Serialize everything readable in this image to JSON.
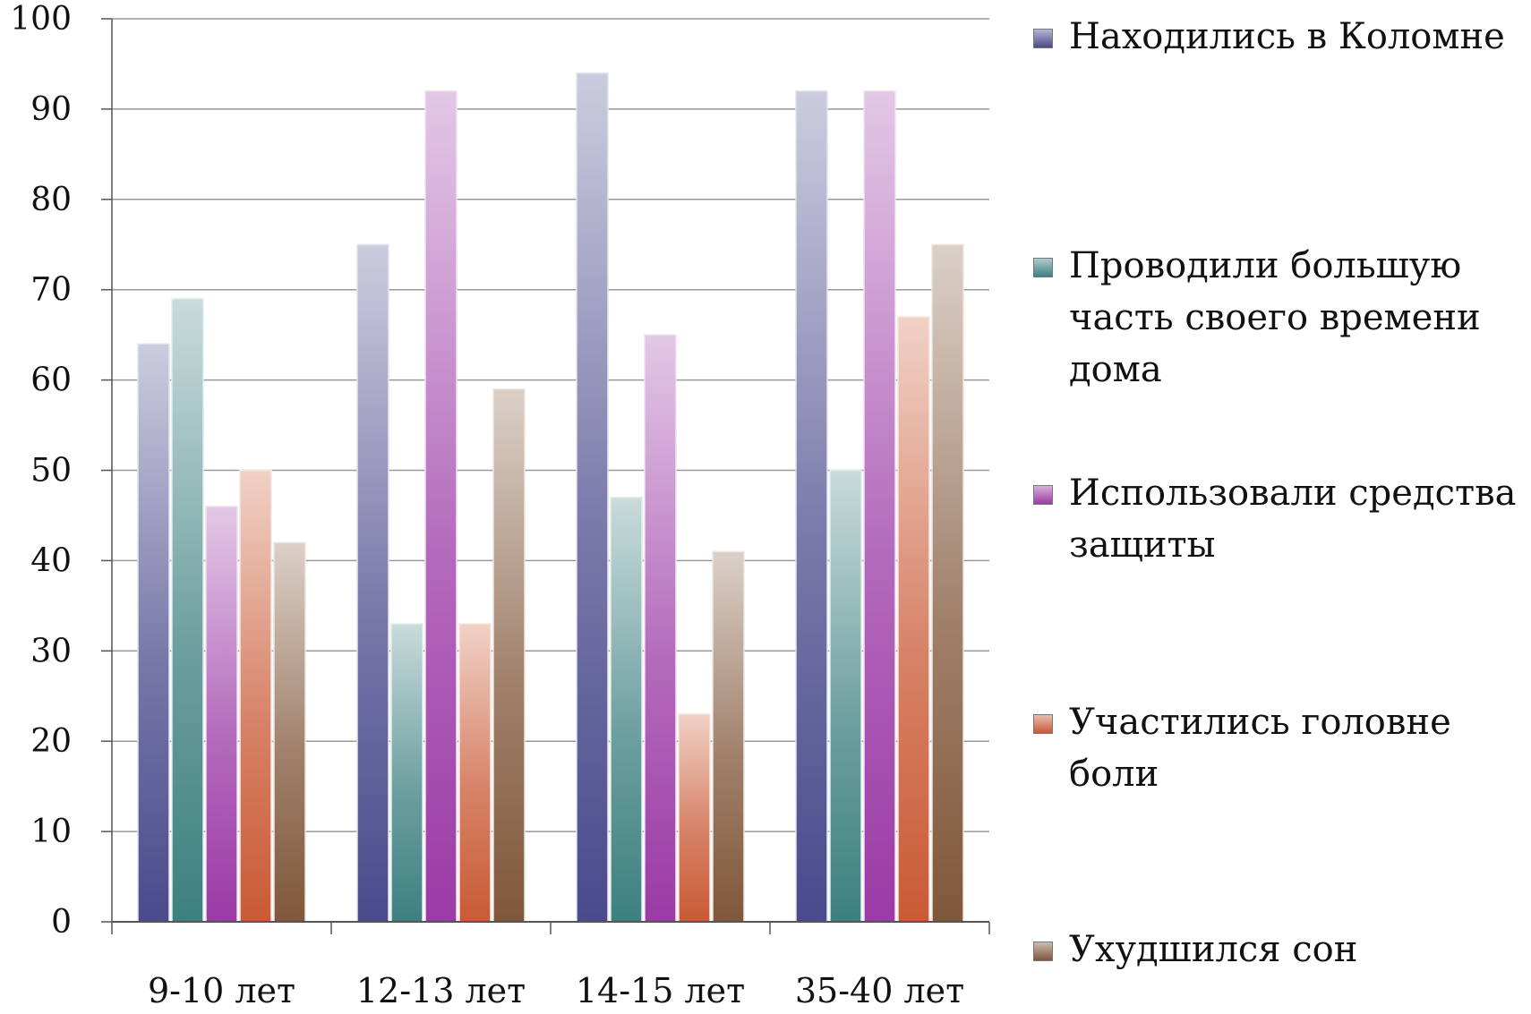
{
  "chart_data": {
    "type": "bar",
    "categories": [
      "9-10 лет",
      "12-13 лет",
      "14-15 лет",
      "35-40 лет"
    ],
    "series": [
      {
        "name": "Находились в Коломне",
        "color": "#4a4a8c",
        "values": [
          64,
          75,
          94,
          92
        ]
      },
      {
        "name": "Проводили большую часть своего времени дома",
        "color": "#3d8080",
        "values": [
          69,
          33,
          47,
          50
        ]
      },
      {
        "name": "Использовали средства защиты",
        "color": "#9b3aa6",
        "values": [
          46,
          92,
          65,
          92
        ]
      },
      {
        "name": "Участились головне боли",
        "color": "#c95a35",
        "values": [
          50,
          33,
          23,
          67
        ]
      },
      {
        "name": "Ухудшился сон",
        "color": "#80573a",
        "values": [
          42,
          59,
          41,
          75
        ]
      }
    ],
    "yticks": [
      "0",
      "10",
      "20",
      "30",
      "40",
      "50",
      "60",
      "70",
      "80",
      "90",
      "100"
    ],
    "ylim": [
      0,
      100
    ],
    "grid": true,
    "legend_position": "right"
  }
}
